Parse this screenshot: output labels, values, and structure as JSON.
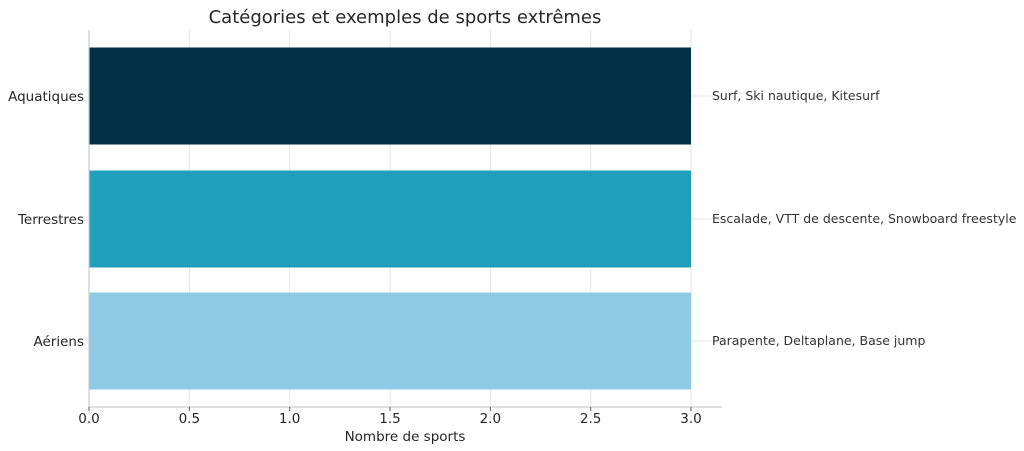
{
  "chart_data": {
    "type": "bar",
    "orientation": "horizontal",
    "title": "Catégories et exemples de sports extrêmes",
    "xlabel": "Nombre de sports",
    "ylabel": "",
    "categories": [
      "Aquatiques",
      "Terrestres",
      "Aériens"
    ],
    "values": [
      3,
      3,
      3
    ],
    "colors": [
      "#023047",
      "#219ebc",
      "#8ecae6"
    ],
    "annotations": [
      "Surf, Ski nautique, Kitesurf",
      "Escalade, VTT de descente, Snowboard freestyle",
      "Parapente, Deltaplane, Base jump"
    ],
    "xlim": [
      0,
      3.15
    ],
    "xticks": [
      0.0,
      0.5,
      1.0,
      1.5,
      2.0,
      2.5,
      3.0
    ],
    "xtick_labels": [
      "0.0",
      "0.5",
      "1.0",
      "1.5",
      "2.0",
      "2.5",
      "3.0"
    ],
    "grid": true,
    "legend": "none"
  }
}
